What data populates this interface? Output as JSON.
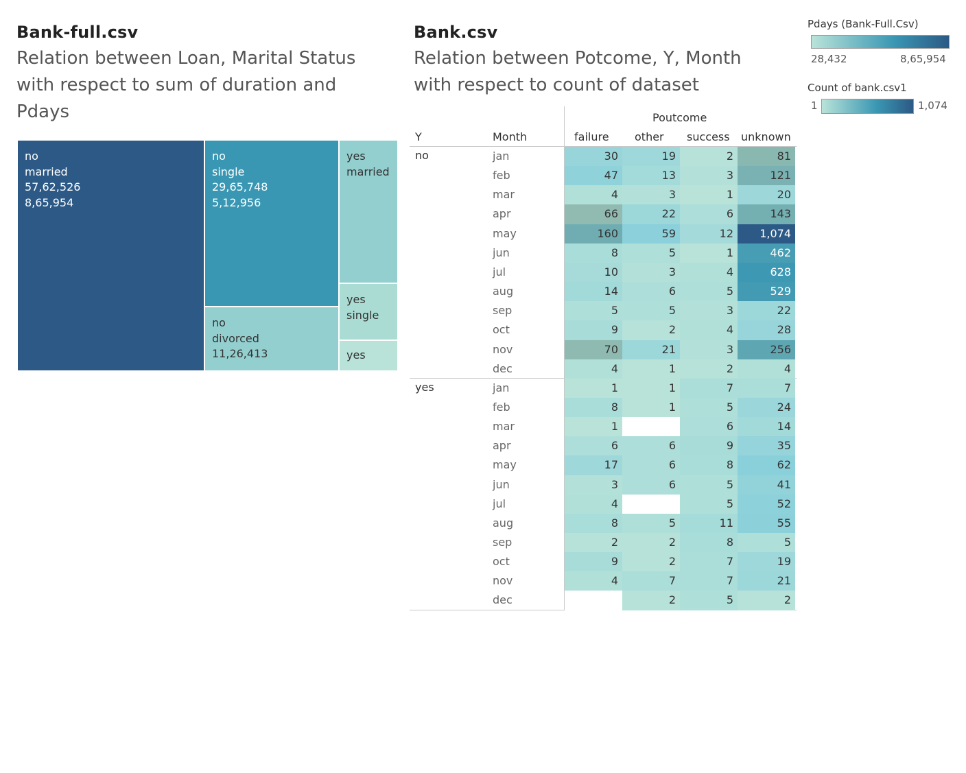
{
  "left_panel": {
    "title": "Bank-full.csv",
    "subtitle_lines": [
      "Relation between Loan, Marital Status",
      "with respect to sum of duration and",
      "Pdays"
    ]
  },
  "right_panel": {
    "title": "Bank.csv",
    "subtitle_lines": [
      "Relation between Potcome, Y, Month",
      "with respect to count of dataset"
    ]
  },
  "legends": {
    "pdays": {
      "title": "Pdays (Bank-Full.Csv)",
      "min_label": "28,432",
      "max_label": "8,65,954",
      "color_low": "#b9e3d9",
      "color_high": "#2c5985"
    },
    "count": {
      "title": "Count of bank.csv1",
      "min_label": "1",
      "max_label": "1,074",
      "color_low": "#b9e3d9",
      "color_high": "#2c5985"
    }
  },
  "colors": {
    "treemap_no_married": "#2c5985",
    "treemap_no_single": "#3a97b3",
    "treemap_no_divorced": "#94cfd0",
    "treemap_yes_married": "#94cfd0",
    "treemap_yes_single": "#aadcd3",
    "treemap_yes_divorced": "#b9e3d9"
  },
  "chart_data": [
    {
      "type": "treemap",
      "title": "Bank-full.csv",
      "subtitle": "Relation between Loan, Marital Status with respect to sum of duration and Pdays",
      "cells": [
        {
          "loan": "no",
          "marital": "married",
          "sum_duration": "57,62,526",
          "pdays": "8,65,954"
        },
        {
          "loan": "no",
          "marital": "single",
          "sum_duration": "29,65,748",
          "pdays": "5,12,956"
        },
        {
          "loan": "no",
          "marital": "divorced",
          "sum_duration": "11,26,413",
          "pdays": ""
        },
        {
          "loan": "yes",
          "marital": "married",
          "sum_duration": "",
          "pdays": ""
        },
        {
          "loan": "yes",
          "marital": "single",
          "sum_duration": "",
          "pdays": ""
        },
        {
          "loan": "yes",
          "marital": "",
          "sum_duration": "",
          "pdays": ""
        }
      ]
    },
    {
      "type": "heatmap",
      "title": "Bank.csv",
      "subtitle": "Relation between Potcome, Y, Month with respect to count of dataset",
      "column_group_label": "Poutcome",
      "row_headers": [
        "Y",
        "Month"
      ],
      "columns": [
        "failure",
        "other",
        "success",
        "unknown"
      ],
      "value_range": [
        1,
        1074
      ],
      "groups": [
        {
          "y": "no",
          "rows": [
            {
              "month": "jan",
              "values": [
                30,
                19,
                2,
                81
              ]
            },
            {
              "month": "feb",
              "values": [
                47,
                13,
                3,
                121
              ]
            },
            {
              "month": "mar",
              "values": [
                4,
                3,
                1,
                20
              ]
            },
            {
              "month": "apr",
              "values": [
                66,
                22,
                6,
                143
              ]
            },
            {
              "month": "may",
              "values": [
                160,
                59,
                12,
                1074
              ]
            },
            {
              "month": "jun",
              "values": [
                8,
                5,
                1,
                462
              ]
            },
            {
              "month": "jul",
              "values": [
                10,
                3,
                4,
                628
              ]
            },
            {
              "month": "aug",
              "values": [
                14,
                6,
                5,
                529
              ]
            },
            {
              "month": "sep",
              "values": [
                5,
                5,
                3,
                22
              ]
            },
            {
              "month": "oct",
              "values": [
                9,
                2,
                4,
                28
              ]
            },
            {
              "month": "nov",
              "values": [
                70,
                21,
                3,
                256
              ]
            },
            {
              "month": "dec",
              "values": [
                4,
                1,
                2,
                4
              ]
            }
          ]
        },
        {
          "y": "yes",
          "rows": [
            {
              "month": "jan",
              "values": [
                1,
                1,
                7,
                7
              ]
            },
            {
              "month": "feb",
              "values": [
                8,
                1,
                5,
                24
              ]
            },
            {
              "month": "mar",
              "values": [
                1,
                null,
                6,
                14
              ]
            },
            {
              "month": "apr",
              "values": [
                6,
                6,
                9,
                35
              ]
            },
            {
              "month": "may",
              "values": [
                17,
                6,
                8,
                62
              ]
            },
            {
              "month": "jun",
              "values": [
                3,
                6,
                5,
                41
              ]
            },
            {
              "month": "jul",
              "values": [
                4,
                null,
                5,
                52
              ]
            },
            {
              "month": "aug",
              "values": [
                8,
                5,
                11,
                55
              ]
            },
            {
              "month": "sep",
              "values": [
                2,
                2,
                8,
                5
              ]
            },
            {
              "month": "oct",
              "values": [
                9,
                2,
                7,
                19
              ]
            },
            {
              "month": "nov",
              "values": [
                4,
                7,
                7,
                21
              ]
            },
            {
              "month": "dec",
              "values": [
                null,
                2,
                5,
                2
              ]
            }
          ]
        }
      ]
    }
  ]
}
